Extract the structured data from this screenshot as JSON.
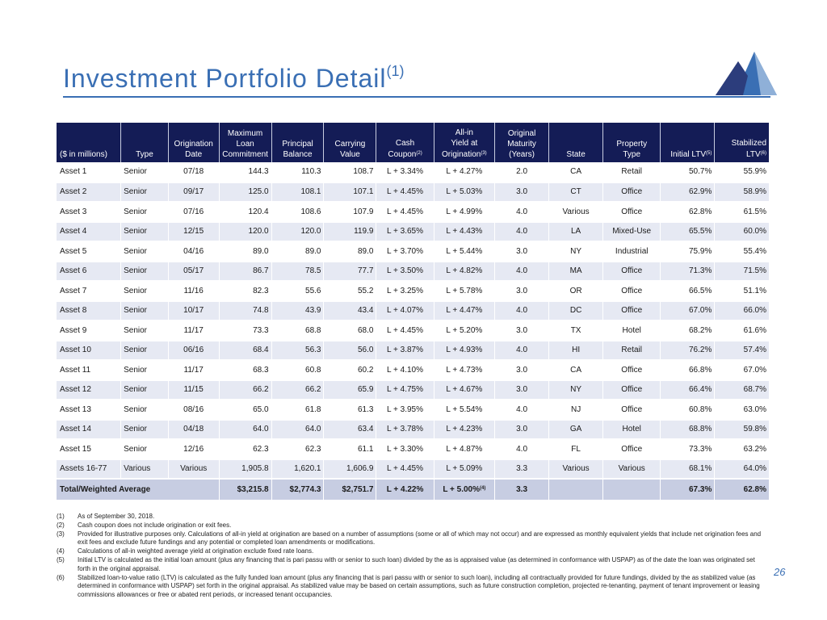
{
  "title": {
    "text": "Investment Portfolio Detail",
    "footnote_ref": "(1)"
  },
  "logo": {
    "icon": "mountain-logo-icon",
    "colors": [
      "#1f2a5e",
      "#3a6fb4",
      "#8fb0d8"
    ]
  },
  "table": {
    "headers": [
      {
        "lines": [
          "($ in millions)"
        ],
        "sup": ""
      },
      {
        "lines": [
          "Type"
        ],
        "sup": ""
      },
      {
        "lines": [
          "Origination",
          "Date"
        ],
        "sup": ""
      },
      {
        "lines": [
          "Maximum",
          "Loan",
          "Commitment"
        ],
        "sup": ""
      },
      {
        "lines": [
          "Principal",
          "Balance"
        ],
        "sup": ""
      },
      {
        "lines": [
          "Carrying",
          "Value"
        ],
        "sup": ""
      },
      {
        "lines": [
          "Cash",
          "Coupon"
        ],
        "sup": "(2)"
      },
      {
        "lines": [
          "All-in",
          "Yield at",
          "Origination"
        ],
        "sup": "(3)"
      },
      {
        "lines": [
          "Original",
          "Maturity",
          "(Years)"
        ],
        "sup": ""
      },
      {
        "lines": [
          "State"
        ],
        "sup": ""
      },
      {
        "lines": [
          "Property",
          "Type"
        ],
        "sup": ""
      },
      {
        "lines": [
          "Initial LTV"
        ],
        "sup": "(5)"
      },
      {
        "lines": [
          "Stabilized",
          "LTV"
        ],
        "sup": "(6)"
      }
    ],
    "rows": [
      [
        "Asset 1",
        "Senior",
        "07/18",
        "144.3",
        "110.3",
        "108.7",
        "L + 3.34%",
        "L + 4.27%",
        "2.0",
        "CA",
        "Retail",
        "50.7%",
        "55.9%"
      ],
      [
        "Asset 2",
        "Senior",
        "09/17",
        "125.0",
        "108.1",
        "107.1",
        "L + 4.45%",
        "L + 5.03%",
        "3.0",
        "CT",
        "Office",
        "62.9%",
        "58.9%"
      ],
      [
        "Asset 3",
        "Senior",
        "07/16",
        "120.4",
        "108.6",
        "107.9",
        "L + 4.45%",
        "L + 4.99%",
        "4.0",
        "Various",
        "Office",
        "62.8%",
        "61.5%"
      ],
      [
        "Asset 4",
        "Senior",
        "12/15",
        "120.0",
        "120.0",
        "119.9",
        "L + 3.65%",
        "L + 4.43%",
        "4.0",
        "LA",
        "Mixed-Use",
        "65.5%",
        "60.0%"
      ],
      [
        "Asset 5",
        "Senior",
        "04/16",
        "89.0",
        "89.0",
        "89.0",
        "L + 3.70%",
        "L + 5.44%",
        "3.0",
        "NY",
        "Industrial",
        "75.9%",
        "55.4%"
      ],
      [
        "Asset 6",
        "Senior",
        "05/17",
        "86.7",
        "78.5",
        "77.7",
        "L + 3.50%",
        "L + 4.82%",
        "4.0",
        "MA",
        "Office",
        "71.3%",
        "71.5%"
      ],
      [
        "Asset 7",
        "Senior",
        "11/16",
        "82.3",
        "55.6",
        "55.2",
        "L + 3.25%",
        "L + 5.78%",
        "3.0",
        "OR",
        "Office",
        "66.5%",
        "51.1%"
      ],
      [
        "Asset 8",
        "Senior",
        "10/17",
        "74.8",
        "43.9",
        "43.4",
        "L + 4.07%",
        "L + 4.47%",
        "4.0",
        "DC",
        "Office",
        "67.0%",
        "66.0%"
      ],
      [
        "Asset 9",
        "Senior",
        "11/17",
        "73.3",
        "68.8",
        "68.0",
        "L + 4.45%",
        "L + 5.20%",
        "3.0",
        "TX",
        "Hotel",
        "68.2%",
        "61.6%"
      ],
      [
        "Asset 10",
        "Senior",
        "06/16",
        "68.4",
        "56.3",
        "56.0",
        "L + 3.87%",
        "L + 4.93%",
        "4.0",
        "HI",
        "Retail",
        "76.2%",
        "57.4%"
      ],
      [
        "Asset 11",
        "Senior",
        "11/17",
        "68.3",
        "60.8",
        "60.2",
        "L + 4.10%",
        "L + 4.73%",
        "3.0",
        "CA",
        "Office",
        "66.8%",
        "67.0%"
      ],
      [
        "Asset 12",
        "Senior",
        "11/15",
        "66.2",
        "66.2",
        "65.9",
        "L + 4.75%",
        "L + 4.67%",
        "3.0",
        "NY",
        "Office",
        "66.4%",
        "68.7%"
      ],
      [
        "Asset 13",
        "Senior",
        "08/16",
        "65.0",
        "61.8",
        "61.3",
        "L + 3.95%",
        "L + 5.54%",
        "4.0",
        "NJ",
        "Office",
        "60.8%",
        "63.0%"
      ],
      [
        "Asset 14",
        "Senior",
        "04/18",
        "64.0",
        "64.0",
        "63.4",
        "L + 3.78%",
        "L + 4.23%",
        "3.0",
        "GA",
        "Hotel",
        "68.8%",
        "59.8%"
      ],
      [
        "Asset 15",
        "Senior",
        "12/16",
        "62.3",
        "62.3",
        "61.1",
        "L + 3.30%",
        "L + 4.87%",
        "4.0",
        "FL",
        "Office",
        "73.3%",
        "63.2%"
      ],
      [
        "Assets 16-77",
        "Various",
        "Various",
        "1,905.8",
        "1,620.1",
        "1,606.9",
        "L + 4.45%",
        "L + 5.09%",
        "3.3",
        "Various",
        "Various",
        "68.1%",
        "64.0%"
      ]
    ],
    "total": {
      "label": "Total/Weighted Average",
      "max_commitment": "$3,215.8",
      "principal": "$2,774.3",
      "carrying": "$2,751.7",
      "cash_coupon": "L + 4.22%",
      "all_in_yield": "L + 5.00%",
      "all_in_sup": "(4)",
      "maturity": "3.3",
      "initial_ltv": "67.3%",
      "stabilized_ltv": "62.8%"
    }
  },
  "footnotes": [
    {
      "num": "(1)",
      "text": "As of September 30, 2018."
    },
    {
      "num": "(2)",
      "text": "Cash coupon does not include origination or exit fees."
    },
    {
      "num": "(3)",
      "text": "Provided for illustrative purposes only. Calculations of all-in yield at origination are based on a number of assumptions (some or all of which may not occur) and are expressed as monthly equivalent yields that include net origination fees and exit fees and exclude future fundings and any potential or completed loan amendments or modifications."
    },
    {
      "num": "(4)",
      "text": "Calculations of all-in weighted average yield at origination exclude fixed rate loans."
    },
    {
      "num": "(5)",
      "text": "Initial LTV is calculated as the initial loan amount (plus any financing that is pari passu with or senior to such loan) divided by the as is appraised value (as determined in conformance with USPAP) as of the date the loan was originated set forth in the original appraisal."
    },
    {
      "num": "(6)",
      "text": "Stabilized loan-to-value ratio (LTV) is calculated as the fully funded loan amount (plus any financing that is pari passu with or senior to such loan), including all contractually provided for future fundings, divided by the as stabilized value (as determined in conformance with USPAP) set forth in the original appraisal. As stabilized value may be based on certain assumptions, such as future construction completion, projected re-tenanting, payment of tenant improvement or leasing commissions allowances or free or abated rent periods, or increased tenant occupancies."
    }
  ],
  "page_number": "26"
}
